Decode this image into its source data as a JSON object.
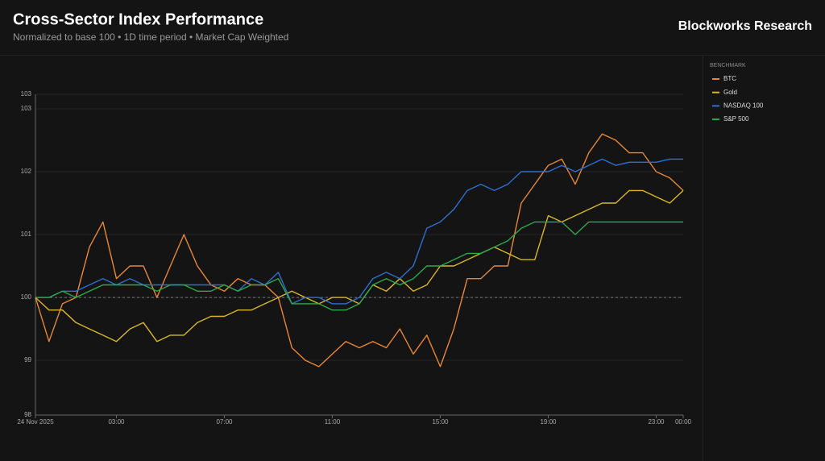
{
  "chart_data": {
    "type": "line",
    "title": "Cross-Sector Index Performance",
    "subtitle": "Normalized to base 100 • 1D time period • Market Cap Weighted",
    "brand": "Blockworks Research",
    "legend_title": "BENCHMARK",
    "reference_line": 100,
    "xlim": [
      0,
      24
    ],
    "xticks": [
      {
        "value": 0,
        "label": "24 Nov 2025"
      },
      {
        "value": 3,
        "label": "03:00"
      },
      {
        "value": 7,
        "label": "07:00"
      },
      {
        "value": 11,
        "label": "11:00"
      },
      {
        "value": 15,
        "label": "15:00"
      },
      {
        "value": 19,
        "label": "19:00"
      },
      {
        "value": 23,
        "label": "23:00"
      },
      {
        "value": 24,
        "label": "00:00"
      }
    ],
    "ylim": [
      98.13,
      103.23
    ],
    "yticks": [
      {
        "value": 98.13,
        "label": "98"
      },
      99,
      100,
      101,
      102,
      103,
      {
        "value": 103.23,
        "label": "103"
      }
    ],
    "grid": true,
    "x": [
      0,
      0.5,
      1,
      1.5,
      2,
      2.5,
      3,
      3.5,
      4,
      4.5,
      5,
      5.5,
      6,
      6.5,
      7,
      7.5,
      8,
      8.5,
      9,
      9.5,
      10,
      10.5,
      11,
      11.5,
      12,
      12.5,
      13,
      13.5,
      14,
      14.5,
      15,
      15.5,
      16,
      16.5,
      17,
      17.5,
      18,
      18.5,
      19,
      19.5,
      20,
      20.5,
      21,
      21.5,
      22,
      22.5,
      23,
      23.5,
      24
    ],
    "series": [
      {
        "name": "BTC",
        "color": "#e8873a",
        "values": [
          100,
          99.3,
          99.9,
          100.0,
          100.8,
          101.2,
          100.3,
          100.5,
          100.5,
          100.0,
          100.5,
          101.0,
          100.5,
          100.2,
          100.1,
          100.3,
          100.2,
          100.2,
          100.0,
          99.2,
          99.0,
          98.9,
          99.1,
          99.3,
          99.2,
          99.3,
          99.2,
          99.5,
          99.1,
          99.4,
          98.9,
          99.5,
          100.3,
          100.3,
          100.5,
          100.5,
          101.5,
          101.8,
          102.1,
          102.2,
          101.8,
          102.3,
          102.6,
          102.5,
          102.3,
          102.3,
          102.0,
          101.9,
          101.7
        ]
      },
      {
        "name": "Gold",
        "color": "#d9b62c",
        "values": [
          100,
          99.8,
          99.8,
          99.6,
          99.5,
          99.4,
          99.3,
          99.5,
          99.6,
          99.3,
          99.4,
          99.4,
          99.6,
          99.7,
          99.7,
          99.8,
          99.8,
          99.9,
          100.0,
          100.1,
          100.0,
          99.9,
          100.0,
          100.0,
          99.9,
          100.2,
          100.1,
          100.3,
          100.1,
          100.2,
          100.5,
          100.5,
          100.6,
          100.7,
          100.8,
          100.7,
          100.6,
          100.6,
          101.3,
          101.2,
          101.3,
          101.4,
          101.5,
          101.5,
          101.7,
          101.7,
          101.6,
          101.5,
          101.7
        ]
      },
      {
        "name": "NASDAQ 100",
        "color": "#2f6fd0",
        "values": [
          100,
          100.0,
          100.1,
          100.1,
          100.2,
          100.3,
          100.2,
          100.3,
          100.2,
          100.2,
          100.2,
          100.2,
          100.2,
          100.2,
          100.2,
          100.1,
          100.3,
          100.2,
          100.4,
          99.9,
          100.0,
          100.0,
          99.9,
          99.9,
          100.0,
          100.3,
          100.4,
          100.3,
          100.5,
          101.1,
          101.2,
          101.4,
          101.7,
          101.8,
          101.7,
          101.8,
          102.0,
          102.0,
          102.0,
          102.1,
          102.0,
          102.1,
          102.2,
          102.1,
          102.15,
          102.15,
          102.15,
          102.2,
          102.2
        ]
      },
      {
        "name": "S&P 500",
        "color": "#2fa84a",
        "values": [
          100,
          100.0,
          100.1,
          100.0,
          100.1,
          100.2,
          100.2,
          100.2,
          100.2,
          100.1,
          100.2,
          100.2,
          100.1,
          100.1,
          100.2,
          100.1,
          100.2,
          100.2,
          100.3,
          99.9,
          99.9,
          99.9,
          99.8,
          99.8,
          99.9,
          100.2,
          100.3,
          100.2,
          100.3,
          100.5,
          100.5,
          100.6,
          100.7,
          100.7,
          100.8,
          100.9,
          101.1,
          101.2,
          101.2,
          101.2,
          101.0,
          101.2,
          101.2,
          101.2,
          101.2,
          101.2,
          101.2,
          101.2,
          101.2
        ]
      }
    ]
  }
}
